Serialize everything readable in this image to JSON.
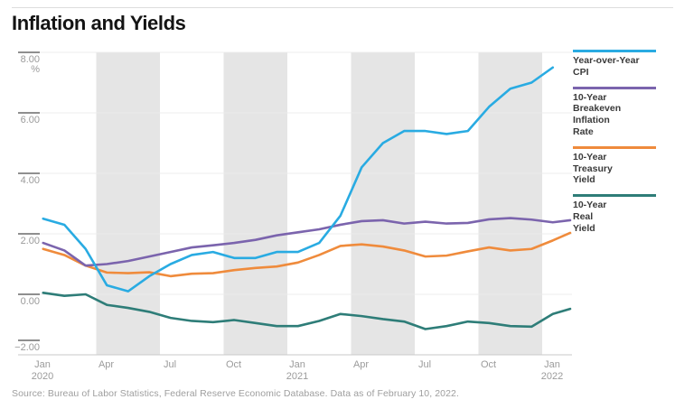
{
  "header": {
    "title": "Inflation and Yields"
  },
  "source": "Source: Bureau of Labor Statistics, Federal Reserve Economic Database. Data as of February 10, 2022.",
  "legend": {
    "items": [
      {
        "lines": [
          "Year-over-Year",
          "CPI"
        ]
      },
      {
        "lines": [
          "10-Year",
          "Breakeven",
          "Inflation",
          "Rate"
        ]
      },
      {
        "lines": [
          "10-Year",
          "Treasury",
          "Yield"
        ]
      },
      {
        "lines": [
          "10-Year",
          "Real",
          "Yield"
        ]
      }
    ]
  },
  "chart_data": {
    "type": "line",
    "title": "Inflation and Yields",
    "xlabel": "",
    "ylabel": "%",
    "y_unit": "%",
    "ylim": [
      -2,
      8
    ],
    "grid": true,
    "legend_position": "right",
    "x_range": "Jan 2020 - Feb 10, 2022",
    "months": [
      "Jan 2020",
      "Feb 2020",
      "Mar 2020",
      "Apr 2020",
      "May 2020",
      "Jun 2020",
      "Jul 2020",
      "Aug 2020",
      "Sep 2020",
      "Oct 2020",
      "Nov 2020",
      "Dec 2020",
      "Jan 2021",
      "Feb 2021",
      "Mar 2021",
      "Apr 2021",
      "May 2021",
      "Jun 2021",
      "Jul 2021",
      "Aug 2021",
      "Sep 2021",
      "Oct 2021",
      "Nov 2021",
      "Dec 2021",
      "Jan 2022",
      "Feb 10, 2022"
    ],
    "y_ticks": [
      {
        "value": 8,
        "label": "8.00"
      },
      {
        "value": 6,
        "label": "6.00"
      },
      {
        "value": 4,
        "label": "4.00"
      },
      {
        "value": 2,
        "label": "2.00"
      },
      {
        "value": 0,
        "label": "0.00"
      },
      {
        "value": -2,
        "label": "−2.00"
      }
    ],
    "x_ticks": [
      {
        "index": 0,
        "month": "Jan",
        "year": "2020"
      },
      {
        "index": 3,
        "month": "Apr"
      },
      {
        "index": 6,
        "month": "Jul"
      },
      {
        "index": 9,
        "month": "Oct"
      },
      {
        "index": 12,
        "month": "Jan",
        "year": "2021"
      },
      {
        "index": 15,
        "month": "Apr"
      },
      {
        "index": 18,
        "month": "Jul"
      },
      {
        "index": 21,
        "month": "Oct"
      },
      {
        "index": 24,
        "month": "Jan",
        "year": "2022"
      }
    ],
    "shaded_quarters": [
      [
        3,
        6
      ],
      [
        9,
        12
      ],
      [
        15,
        18
      ],
      [
        21,
        24
      ]
    ],
    "colors": {
      "band": "#e5e5e5",
      "grid": "#ececec",
      "axis": "#c9c9c9",
      "tick": "#8f8f8f",
      "axis_text": "#9b9b9b"
    },
    "series": [
      {
        "name": "Year-over-Year CPI",
        "color": "#29abe2",
        "values": [
          2.5,
          2.3,
          1.5,
          0.3,
          0.1,
          0.6,
          1.0,
          1.3,
          1.4,
          1.2,
          1.2,
          1.4,
          1.4,
          1.7,
          2.6,
          4.2,
          5.0,
          5.4,
          5.4,
          5.3,
          5.4,
          6.2,
          6.8,
          7.0,
          7.5
        ]
      },
      {
        "name": "10-Year Breakeven Inflation Rate",
        "color": "#7b64ad",
        "values": [
          1.7,
          1.45,
          0.95,
          1.0,
          1.1,
          1.25,
          1.4,
          1.55,
          1.62,
          1.7,
          1.8,
          1.95,
          2.05,
          2.15,
          2.3,
          2.42,
          2.45,
          2.34,
          2.4,
          2.34,
          2.36,
          2.48,
          2.52,
          2.47,
          2.38,
          2.45
        ]
      },
      {
        "name": "10-Year Treasury Yield",
        "color": "#ef8b3c",
        "values": [
          1.5,
          1.3,
          0.95,
          0.72,
          0.7,
          0.73,
          0.6,
          0.68,
          0.7,
          0.8,
          0.87,
          0.92,
          1.05,
          1.3,
          1.6,
          1.65,
          1.58,
          1.45,
          1.25,
          1.28,
          1.42,
          1.55,
          1.45,
          1.5,
          1.78,
          2.03
        ]
      },
      {
        "name": "10-Year Real Yield",
        "color": "#2e7d78",
        "values": [
          0.05,
          -0.05,
          0.0,
          -0.35,
          -0.45,
          -0.58,
          -0.78,
          -0.88,
          -0.92,
          -0.85,
          -0.95,
          -1.05,
          -1.05,
          -0.88,
          -0.65,
          -0.72,
          -0.82,
          -0.9,
          -1.15,
          -1.05,
          -0.9,
          -0.95,
          -1.05,
          -1.07,
          -0.65,
          -0.48
        ]
      }
    ]
  }
}
